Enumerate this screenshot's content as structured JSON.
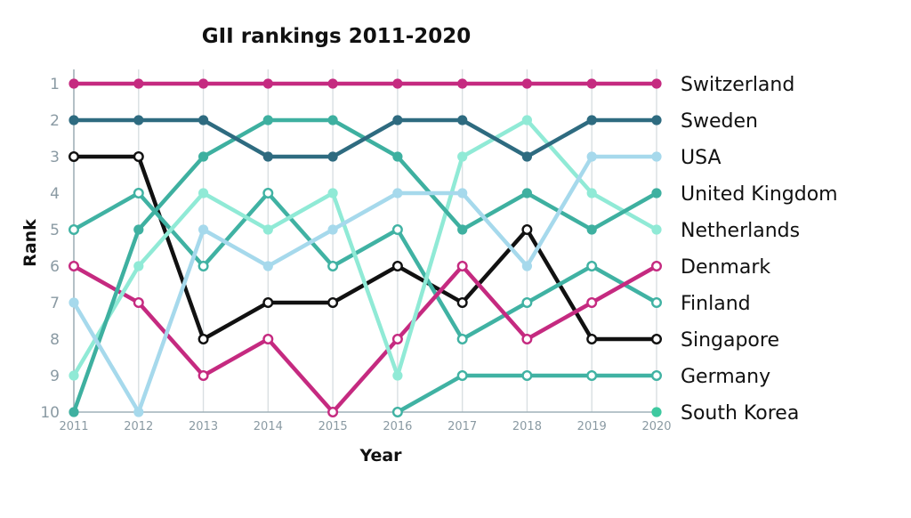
{
  "chart_data": {
    "type": "line",
    "title": "GII rankings 2011-2020",
    "xlabel": "Year",
    "ylabel": "Rank",
    "x": [
      "2011",
      "2012",
      "2013",
      "2014",
      "2015",
      "2016",
      "2017",
      "2018",
      "2019",
      "2020"
    ],
    "yticks": [
      "1",
      "2",
      "3",
      "4",
      "5",
      "6",
      "7",
      "8",
      "9",
      "10"
    ],
    "ylim": [
      1,
      10
    ],
    "y_inverted": true,
    "grid": "vertical",
    "legend_position": "right, labels at series end",
    "series": [
      {
        "name": "Switzerland",
        "color": "#c52a80",
        "marker": "filled",
        "values": [
          1,
          1,
          1,
          1,
          1,
          1,
          1,
          1,
          1,
          1
        ]
      },
      {
        "name": "Sweden",
        "color": "#2e6b80",
        "marker": "filled",
        "values": [
          2,
          2,
          2,
          3,
          3,
          2,
          2,
          3,
          2,
          2
        ]
      },
      {
        "name": "USA",
        "color": "#a6d9ec",
        "marker": "filled",
        "values": [
          7,
          10,
          5,
          6,
          5,
          4,
          4,
          6,
          3,
          3
        ]
      },
      {
        "name": "United Kingdom",
        "color": "#3eb0a0",
        "marker": "filled",
        "values": [
          10,
          5,
          3,
          2,
          2,
          3,
          5,
          4,
          5,
          4
        ]
      },
      {
        "name": "Netherlands",
        "color": "#90ead6",
        "marker": "filled",
        "values": [
          9,
          6,
          4,
          5,
          4,
          9,
          3,
          2,
          4,
          5
        ]
      },
      {
        "name": "Denmark",
        "color": "#c52a80",
        "marker": "open",
        "values": [
          6,
          7,
          9,
          8,
          10,
          8,
          6,
          8,
          7,
          6
        ]
      },
      {
        "name": "Finland",
        "color": "#40b2a3",
        "marker": "open",
        "values": [
          5,
          4,
          6,
          4,
          6,
          5,
          8,
          7,
          6,
          7
        ]
      },
      {
        "name": "Singapore",
        "color": "#111111",
        "marker": "open",
        "values": [
          3,
          3,
          8,
          7,
          7,
          6,
          7,
          5,
          8,
          8
        ]
      },
      {
        "name": "Germany",
        "color": "#40b2a3",
        "marker": "open",
        "values": [
          null,
          null,
          null,
          null,
          null,
          10,
          9,
          9,
          9,
          9
        ]
      },
      {
        "name": "South Korea",
        "color": "#3ec9a0",
        "marker": "filled",
        "values": [
          null,
          null,
          null,
          null,
          null,
          null,
          null,
          null,
          null,
          10
        ]
      }
    ]
  }
}
